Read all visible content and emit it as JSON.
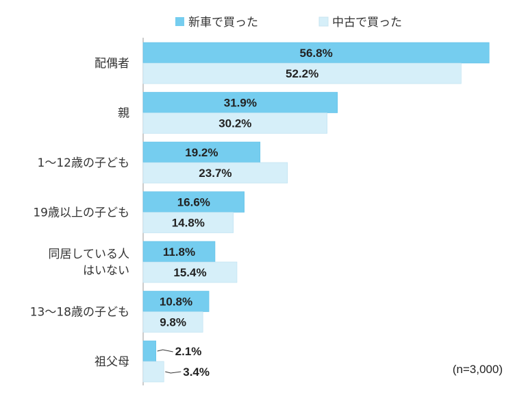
{
  "chart_data": {
    "type": "bar",
    "orientation": "horizontal",
    "categories": [
      [
        "配偶者"
      ],
      [
        "親"
      ],
      [
        "1～12歳の子ども"
      ],
      [
        "19歳以上の子ども"
      ],
      [
        "同居している人",
        "はいない"
      ],
      [
        "13～18歳の子ども"
      ],
      [
        "祖父母"
      ]
    ],
    "series": [
      {
        "name": "新車で買った",
        "color": "#75CDEF",
        "values": [
          56.8,
          31.9,
          19.2,
          16.6,
          11.8,
          10.8,
          2.1
        ],
        "labels": [
          "56.8%",
          "31.9%",
          "19.2%",
          "16.6%",
          "11.8%",
          "10.8%",
          "2.1%"
        ]
      },
      {
        "name": "中古で買った",
        "color": "#D6EFF9",
        "values": [
          52.2,
          30.2,
          23.7,
          14.8,
          15.4,
          9.8,
          3.4
        ],
        "labels": [
          "52.2%",
          "30.2%",
          "23.7%",
          "14.8%",
          "15.4%",
          "9.8%",
          "3.4%"
        ]
      }
    ],
    "xlim": [
      0,
      57
    ],
    "grid": false,
    "legend_position": "top",
    "annotation": "(n=3,000)"
  }
}
